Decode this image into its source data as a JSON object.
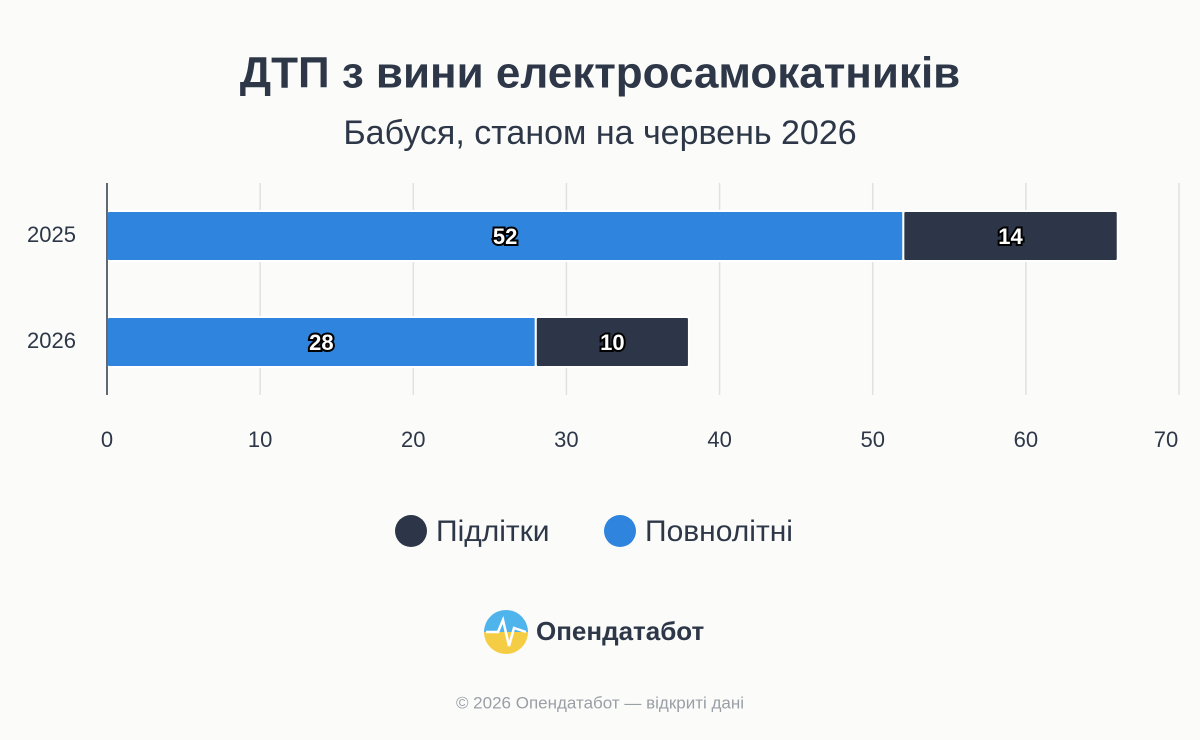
{
  "chart_data": {
    "type": "stacked-bar-horizontal",
    "title": "ДТП з вини електросамокатників",
    "subtitle": "Бабуся, станом на червень 2026",
    "categories": [
      "2025",
      "2026"
    ],
    "series": [
      {
        "name": "Підлітки",
        "color": "#2d3648",
        "values": [
          14,
          10
        ]
      },
      {
        "name": "Повнолітні",
        "color": "#2f84de",
        "values": [
          52,
          28
        ]
      }
    ],
    "xlim": [
      0,
      70
    ],
    "xticks": [
      0,
      10,
      20,
      30,
      40,
      50,
      60,
      70
    ],
    "grid": true,
    "legend": "bottom"
  },
  "branding": {
    "logo": "Опендатабот",
    "footer": "© 2026 Опендатабот — відкриті дані"
  }
}
